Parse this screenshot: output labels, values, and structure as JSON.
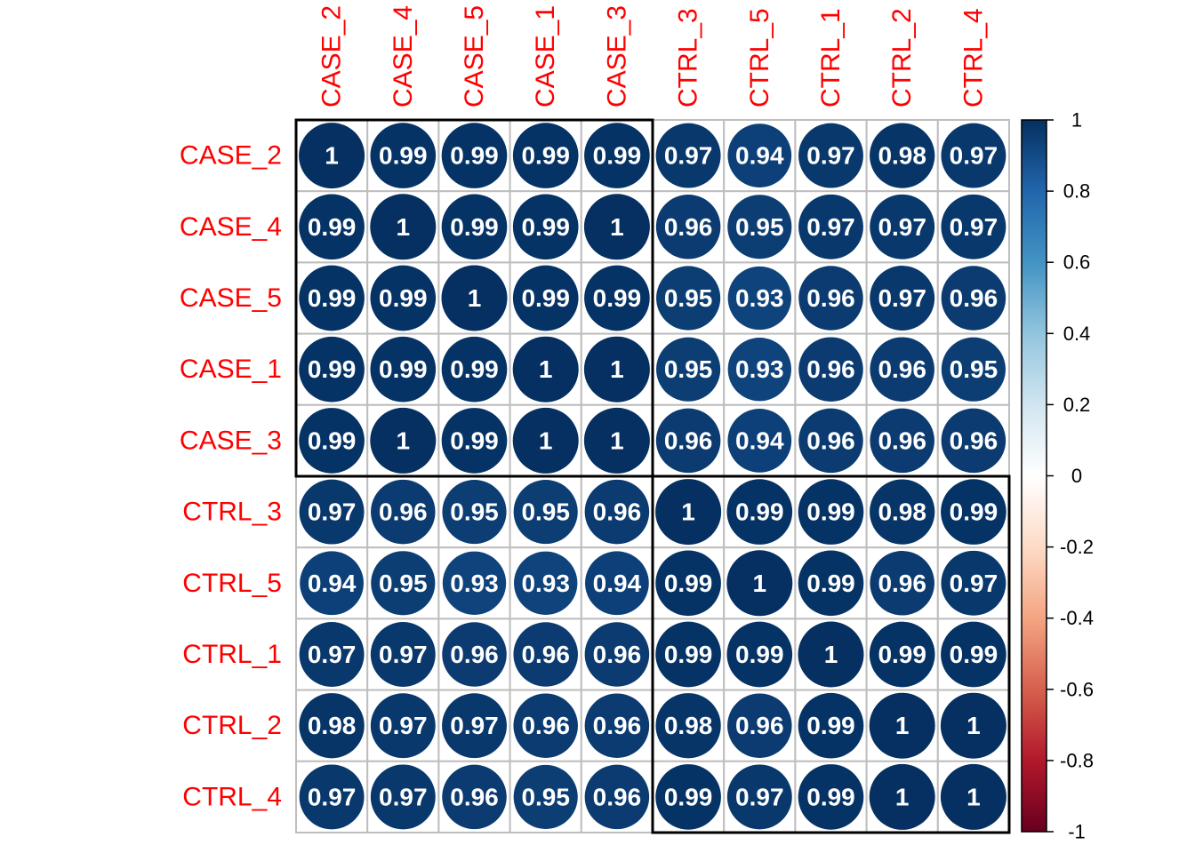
{
  "chart_data": {
    "type": "heatmap",
    "style": "circle correlation matrix",
    "rows": [
      "CASE_2",
      "CASE_4",
      "CASE_5",
      "CASE_1",
      "CASE_3",
      "CTRL_3",
      "CTRL_5",
      "CTRL_1",
      "CTRL_2",
      "CTRL_4"
    ],
    "columns": [
      "CASE_2",
      "CASE_4",
      "CASE_5",
      "CASE_1",
      "CASE_3",
      "CTRL_3",
      "CTRL_5",
      "CTRL_1",
      "CTRL_2",
      "CTRL_4"
    ],
    "values": [
      [
        1,
        0.99,
        0.99,
        0.99,
        0.99,
        0.97,
        0.94,
        0.97,
        0.98,
        0.97
      ],
      [
        0.99,
        1,
        0.99,
        0.99,
        1,
        0.96,
        0.95,
        0.97,
        0.97,
        0.97
      ],
      [
        0.99,
        0.99,
        1,
        0.99,
        0.99,
        0.95,
        0.93,
        0.96,
        0.97,
        0.96
      ],
      [
        0.99,
        0.99,
        0.99,
        1,
        1,
        0.95,
        0.93,
        0.96,
        0.96,
        0.95
      ],
      [
        0.99,
        1,
        0.99,
        1,
        1,
        0.96,
        0.94,
        0.96,
        0.96,
        0.96
      ],
      [
        0.97,
        0.96,
        0.95,
        0.95,
        0.96,
        1,
        0.99,
        0.99,
        0.98,
        0.99
      ],
      [
        0.94,
        0.95,
        0.93,
        0.93,
        0.94,
        0.99,
        1,
        0.99,
        0.96,
        0.97
      ],
      [
        0.97,
        0.97,
        0.96,
        0.96,
        0.96,
        0.99,
        0.99,
        1,
        0.99,
        0.99
      ],
      [
        0.98,
        0.97,
        0.97,
        0.96,
        0.96,
        0.98,
        0.96,
        0.99,
        1,
        1
      ],
      [
        0.97,
        0.97,
        0.96,
        0.95,
        0.96,
        0.99,
        0.97,
        0.99,
        1,
        1
      ]
    ],
    "clusters": [
      {
        "from": "CASE_2",
        "to": "CASE_3"
      },
      {
        "from": "CTRL_3",
        "to": "CTRL_4"
      }
    ],
    "colorbar": {
      "range": [
        -1,
        1
      ],
      "ticks": [
        "1",
        "0.8",
        "0.6",
        "0.4",
        "0.2",
        "0",
        "-0.2",
        "-0.4",
        "-0.6",
        "-0.8",
        "-1"
      ]
    },
    "colors": {
      "label": "#ff0000",
      "grid": "#bebebe",
      "cluster_box": "#000000",
      "palette": [
        "#67001f",
        "#b2182b",
        "#d6604d",
        "#f4a582",
        "#fddbc7",
        "#ffffff",
        "#d1e5f0",
        "#92c5de",
        "#4393c3",
        "#2166ac",
        "#053061"
      ]
    }
  }
}
